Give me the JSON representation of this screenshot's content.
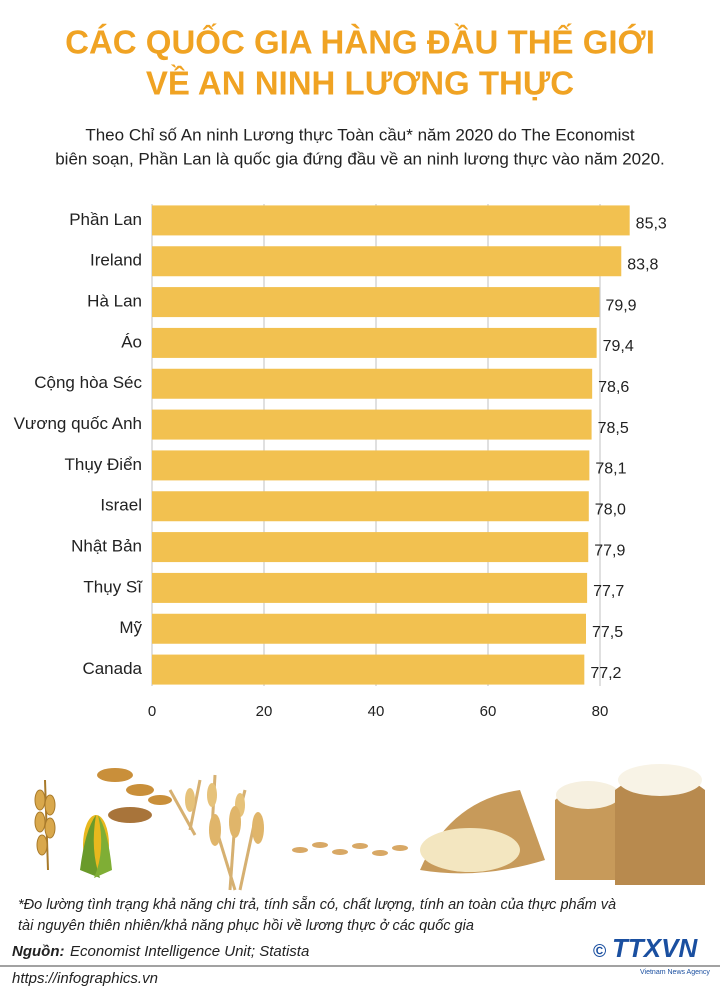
{
  "header": {
    "title": [
      "CÁC QUỐC GIA HÀNG ĐẦU THẾ GIỚI",
      "VỀ AN NINH LƯƠNG THỰC"
    ],
    "subtitle": [
      "Theo Chỉ số An ninh Lương thực Toàn cầu* năm 2020 do The Economist",
      "biên soạn, Phần Lan là quốc gia đứng đầu về an ninh lương thực vào năm 2020."
    ]
  },
  "chart_data": {
    "type": "bar",
    "orientation": "horizontal",
    "categories": [
      "Phần Lan",
      "Ireland",
      "Hà Lan",
      "Áo",
      "Cộng hòa Séc",
      "Vương quốc Anh",
      "Thụy Điển",
      "Israel",
      "Nhật Bản",
      "Thụy Sĩ",
      "Mỹ",
      "Canada"
    ],
    "values": [
      85.3,
      83.8,
      79.9,
      79.4,
      78.6,
      78.5,
      78.1,
      78.0,
      77.9,
      77.7,
      77.5,
      77.2
    ],
    "value_labels": [
      "85,3",
      "83,8",
      "79,9",
      "79,4",
      "78,6",
      "78,5",
      "78,1",
      "78,0",
      "77,9",
      "77,7",
      "77,5",
      "77,2"
    ],
    "color": "#f2c150",
    "xlim": [
      0,
      90
    ],
    "xticks": [
      0,
      20,
      40,
      60,
      80
    ]
  },
  "footer": {
    "note": [
      "*Đo lường tình trạng khả năng chi trả, tính sẵn có, chất lượng, tính an toàn của thực phẩm và",
      "tài nguyên thiên nhiên/khả năng phục hồi về lương thực ở các quốc gia"
    ],
    "source_label": "Nguồn:",
    "source": "Economist Intelligence Unit; Statista",
    "url": "https://infographics.vn",
    "copyright": "©",
    "logo": "TTXVN",
    "logo_sub": "Vietnam News Agency"
  }
}
